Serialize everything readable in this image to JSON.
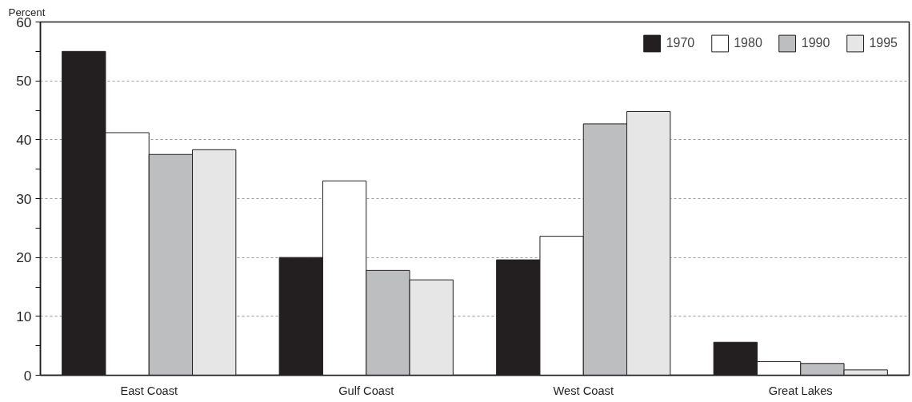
{
  "chart_data": {
    "type": "bar",
    "ylabel": "Percent",
    "categories": [
      "East Coast",
      "Gulf Coast",
      "West Coast",
      "Great Lakes"
    ],
    "series": [
      {
        "name": "1970",
        "color": "#231f20",
        "values": [
          55,
          20,
          19.6,
          5.6
        ]
      },
      {
        "name": "1980",
        "color": "#ffffff",
        "values": [
          41.2,
          33,
          23.6,
          2.3
        ]
      },
      {
        "name": "1990",
        "color": "#bcbec0",
        "values": [
          37.5,
          17.8,
          42.7,
          2.0
        ]
      },
      {
        "name": "1995",
        "color": "#e6e6e6",
        "values": [
          38.3,
          16.2,
          44.8,
          0.9
        ]
      }
    ],
    "ylim": [
      0,
      60
    ],
    "yticks": [
      0,
      {
        "value": 5,
        "label": null
      },
      10,
      {
        "value": 15,
        "label": null
      },
      20,
      {
        "value": 25,
        "label": null
      },
      30,
      {
        "value": 35,
        "label": null
      },
      40,
      {
        "value": 45,
        "label": null
      },
      50,
      {
        "value": 55,
        "label": null
      },
      60
    ],
    "grid": "y",
    "legend": "top right"
  }
}
